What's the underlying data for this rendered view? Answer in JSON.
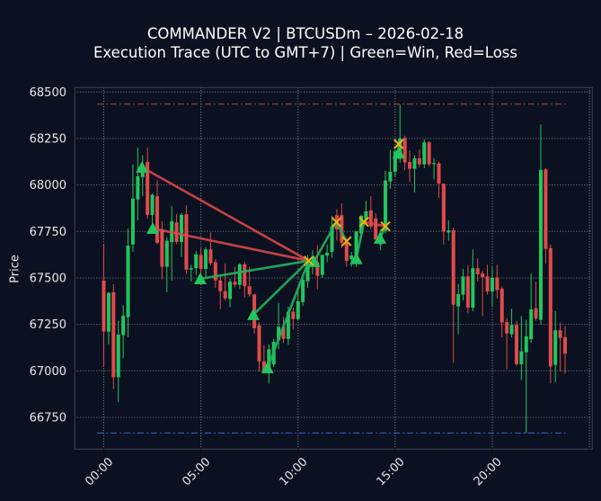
{
  "title": {
    "line1": "COMMANDER V2 | BTCUSDm – 2026-02-18",
    "line2": "Execution Trace (UTC to GMT+7) | Green=Win, Red=Loss"
  },
  "chart_data": {
    "type": "candlestick",
    "title": "COMMANDER V2 | BTCUSDm – 2026-02-18 / Execution Trace (UTC to GMT+7) | Green=Win, Red=Loss",
    "xlabel": "",
    "ylabel": "Price",
    "symbol": "BTCUSDm",
    "date": "2026-02-18",
    "interval_minutes": 15,
    "xlim_hours": [
      -1.49,
      25.15
    ],
    "ylim": [
      66579,
      68524
    ],
    "grid": true,
    "x_ticks": [
      {
        "hours": 0,
        "label": "00:00"
      },
      {
        "hours": 5,
        "label": "05:00"
      },
      {
        "hours": 10,
        "label": "10:00"
      },
      {
        "hours": 15,
        "label": "15:00"
      },
      {
        "hours": 20,
        "label": "20:00"
      },
      {
        "hours": 25,
        "label": ""
      }
    ],
    "y_ticks": [
      {
        "value": 66750,
        "label": "66750"
      },
      {
        "value": 67000,
        "label": "67000"
      },
      {
        "value": 67250,
        "label": "67250"
      },
      {
        "value": 67500,
        "label": "67500"
      },
      {
        "value": 67750,
        "label": "67750"
      },
      {
        "value": 68000,
        "label": "68000"
      },
      {
        "value": 68250,
        "label": "68250"
      },
      {
        "value": 68500,
        "label": "68500"
      }
    ],
    "levels": [
      {
        "name": "upper-level",
        "price": 68435,
        "from_hours": -0.35,
        "to_hours": 23.87,
        "color": "#c4403f",
        "style": "dashdot"
      },
      {
        "name": "lower-level",
        "price": 66666,
        "from_hours": -0.35,
        "to_hours": 23.87,
        "color": "#2f6fd8",
        "style": "dashdot"
      }
    ],
    "candles_ohlc": [
      [
        67486,
        67684,
        67021,
        67211
      ],
      [
        67211,
        67425,
        67143,
        67419
      ],
      [
        67423,
        67466,
        66902,
        66966
      ],
      [
        66966,
        67269,
        66831,
        67195
      ],
      [
        67192,
        67353,
        67068,
        67297
      ],
      [
        67289,
        67765,
        67181,
        67673
      ],
      [
        67680,
        68111,
        67640,
        67926
      ],
      [
        67922,
        68200,
        67810,
        68047
      ],
      [
        68043,
        68161,
        67939,
        68103
      ],
      [
        68124,
        68200,
        67818,
        67839
      ],
      [
        67839,
        67955,
        67750,
        67947
      ],
      [
        67939,
        68024,
        67680,
        67689
      ],
      [
        67761,
        67805,
        67492,
        67560
      ],
      [
        67560,
        67720,
        67423,
        67700
      ],
      [
        67693,
        67886,
        67484,
        67805
      ],
      [
        67799,
        67842,
        67680,
        67693
      ],
      [
        67693,
        67850,
        67613,
        67839
      ],
      [
        67842,
        67890,
        67519,
        67544
      ],
      [
        67545,
        67570,
        67480,
        67552
      ],
      [
        67552,
        67644,
        67516,
        67627
      ],
      [
        67624,
        67660,
        67463,
        67548
      ],
      [
        67548,
        67665,
        67500,
        67653
      ],
      [
        67653,
        67745,
        67568,
        67579
      ],
      [
        67584,
        67600,
        67447,
        67487
      ],
      [
        67487,
        67520,
        67331,
        67428
      ],
      [
        67428,
        67576,
        67380,
        67390
      ],
      [
        67387,
        67495,
        67342,
        67479
      ],
      [
        67479,
        67560,
        67450,
        67463
      ],
      [
        67463,
        67580,
        67440,
        67573
      ],
      [
        67573,
        67587,
        67395,
        67455
      ],
      [
        67455,
        67560,
        67400,
        67411
      ],
      [
        67411,
        67415,
        67200,
        67229
      ],
      [
        67245,
        67260,
        66995,
        67051
      ],
      [
        67051,
        67140,
        66990,
        66995
      ],
      [
        67020,
        67143,
        66931,
        67116
      ],
      [
        67035,
        67172,
        67020,
        67156
      ],
      [
        67165,
        67366,
        67116,
        67237
      ],
      [
        67237,
        67290,
        67150,
        67172
      ],
      [
        67172,
        67345,
        67140,
        67318
      ],
      [
        67318,
        67340,
        67221,
        67278
      ],
      [
        67278,
        67445,
        67270,
        67374
      ],
      [
        67370,
        67505,
        67350,
        67490
      ],
      [
        67482,
        67624,
        67447,
        67576
      ],
      [
        67560,
        67650,
        67520,
        67590
      ],
      [
        67584,
        67676,
        67439,
        67511
      ],
      [
        67516,
        67624,
        67500,
        67624
      ],
      [
        67620,
        67680,
        67585,
        67635
      ],
      [
        67640,
        67834,
        67608,
        67777
      ],
      [
        67837,
        67870,
        67700,
        67761
      ],
      [
        67837,
        67900,
        67660,
        67689
      ],
      [
        67689,
        67715,
        67560,
        67592
      ],
      [
        67600,
        67640,
        67560,
        67620
      ],
      [
        67584,
        67750,
        67560,
        67750
      ],
      [
        67739,
        67840,
        67720,
        67834
      ],
      [
        67811,
        67914,
        67790,
        67858
      ],
      [
        67863,
        67939,
        67760,
        67777
      ],
      [
        67820,
        67847,
        67705,
        67706
      ],
      [
        67680,
        67760,
        67648,
        67740
      ],
      [
        67753,
        68076,
        67740,
        68024
      ],
      [
        68019,
        68189,
        67979,
        68071
      ],
      [
        68071,
        68190,
        68047,
        68181
      ],
      [
        68140,
        68433,
        68120,
        68250
      ],
      [
        68253,
        68265,
        68079,
        68121
      ],
      [
        68124,
        68185,
        68016,
        68087
      ],
      [
        68087,
        68160,
        67960,
        68143
      ],
      [
        68143,
        68190,
        68095,
        68111
      ],
      [
        68111,
        68245,
        68090,
        68229
      ],
      [
        68229,
        68235,
        68100,
        68111
      ],
      [
        68115,
        68145,
        68030,
        68118
      ],
      [
        68116,
        68125,
        67931,
        68007
      ],
      [
        68007,
        68007,
        67680,
        67750
      ],
      [
        67745,
        67810,
        67700,
        67755
      ],
      [
        67756,
        67770,
        67044,
        67356
      ],
      [
        67347,
        67468,
        67197,
        67412
      ],
      [
        67410,
        67547,
        67380,
        67508
      ],
      [
        67508,
        67566,
        67308,
        67340
      ],
      [
        67340,
        67653,
        67320,
        67552
      ],
      [
        67552,
        67605,
        67480,
        67519
      ],
      [
        67524,
        67540,
        67294,
        67503
      ],
      [
        67508,
        67570,
        67410,
        67427
      ],
      [
        67427,
        67560,
        67350,
        67500
      ],
      [
        67503,
        67570,
        67390,
        67434
      ],
      [
        67442,
        67455,
        67179,
        67260
      ],
      [
        67263,
        67285,
        67007,
        67201
      ],
      [
        67197,
        67334,
        67180,
        67247
      ],
      [
        67247,
        67270,
        67026,
        67036
      ],
      [
        67036,
        67295,
        66950,
        67105
      ],
      [
        67100,
        67275,
        66666,
        67186
      ],
      [
        67170,
        67524,
        67150,
        67331
      ],
      [
        67337,
        67479,
        67270,
        67282
      ],
      [
        67274,
        68326,
        67250,
        68081
      ],
      [
        68084,
        68090,
        67576,
        67656
      ],
      [
        67660,
        67680,
        66934,
        67024
      ],
      [
        67032,
        67322,
        66940,
        67218
      ],
      [
        67218,
        67260,
        66995,
        67177
      ],
      [
        67181,
        67240,
        66985,
        67092
      ]
    ],
    "entry_markers": [
      {
        "hours": 1.97,
        "price": 68095
      },
      {
        "hours": 2.52,
        "price": 67766
      },
      {
        "hours": 4.97,
        "price": 67495
      },
      {
        "hours": 7.7,
        "price": 67302
      },
      {
        "hours": 8.43,
        "price": 67016
      },
      {
        "hours": 10.82,
        "price": 67588
      },
      {
        "hours": 13.0,
        "price": 67603
      },
      {
        "hours": 14.22,
        "price": 67713
      },
      {
        "hours": 15.18,
        "price": 68172
      }
    ],
    "exit_markers": [
      {
        "hours": 10.55,
        "price": 67592
      },
      {
        "hours": 11.98,
        "price": 67800
      },
      {
        "hours": 12.5,
        "price": 67697
      },
      {
        "hours": 13.4,
        "price": 67801
      },
      {
        "hours": 14.5,
        "price": 67777
      },
      {
        "hours": 15.18,
        "price": 68220
      }
    ],
    "trade_lines": [
      {
        "from": [
          1.97,
          68095
        ],
        "to": [
          10.55,
          67592
        ],
        "result": "loss"
      },
      {
        "from": [
          2.52,
          67766
        ],
        "to": [
          10.55,
          67592
        ],
        "result": "loss"
      },
      {
        "from": [
          4.97,
          67495
        ],
        "to": [
          10.55,
          67592
        ],
        "result": "win"
      },
      {
        "from": [
          7.7,
          67302
        ],
        "to": [
          10.55,
          67592
        ],
        "result": "win"
      },
      {
        "from": [
          8.43,
          67016
        ],
        "to": [
          10.55,
          67592
        ],
        "result": "win"
      },
      {
        "from": [
          10.82,
          67588
        ],
        "to": [
          11.98,
          67800
        ],
        "result": "win"
      },
      {
        "from": [
          11.98,
          67800
        ],
        "to": [
          12.5,
          67697
        ],
        "result": "win"
      },
      {
        "from": [
          13.0,
          67603
        ],
        "to": [
          13.4,
          67801
        ],
        "result": "win"
      },
      {
        "from": [
          13.4,
          67801
        ],
        "to": [
          14.5,
          67777
        ],
        "result": "loss"
      },
      {
        "from": [
          14.22,
          67713
        ],
        "to": [
          14.5,
          67777
        ],
        "result": "win"
      },
      {
        "from": [
          15.18,
          68172
        ],
        "to": [
          15.18,
          68220
        ],
        "result": "win"
      }
    ],
    "legend": {
      "win": "Green=Win",
      "loss": "Red=Loss"
    },
    "colors": {
      "background": "#0b1120",
      "bull": "#22c55e",
      "bear": "#e04a4a",
      "win_line": "#22b35e",
      "loss_line": "#d9474b",
      "entry_marker": "#22c55e",
      "exit_marker": "#f2b40a",
      "grid": "#aeb3bb",
      "spine": "#3c4456"
    }
  }
}
